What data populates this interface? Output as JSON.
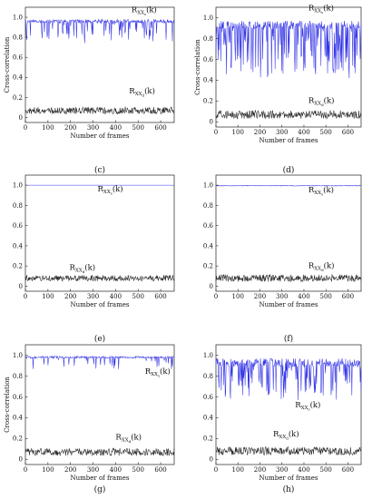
{
  "chart_data": [
    {
      "type": "line",
      "panel_label": "(c)",
      "xlabel": "Number of frames",
      "ylabel": "Cross-correlation",
      "xlim": [
        0,
        660
      ],
      "ylim": [
        -0.05,
        1.1
      ],
      "xticks": [
        0,
        100,
        200,
        300,
        400,
        500,
        600
      ],
      "yticks": [
        0,
        0.2,
        0.4,
        0.6,
        0.8,
        1.0
      ],
      "ytick_labels": [
        "0",
        "0.2",
        "0.4",
        "0.6",
        "0.8",
        "1.0"
      ],
      "series": [
        {
          "name": "R_XXs(k)",
          "color": "#3232e6",
          "base": 0.96,
          "noise": 0.02,
          "dip_prob": 0.22,
          "dip_max": 0.2,
          "seed": 11,
          "label": {
            "x": 470,
            "y": 1.05
          }
        },
        {
          "name": "R_XXd(k)",
          "color": "#222222",
          "base": 0.07,
          "noise": 0.035,
          "dip_prob": 0,
          "dip_max": 0,
          "seed": 12,
          "label": {
            "x": 460,
            "y": 0.24
          }
        }
      ]
    },
    {
      "type": "line",
      "panel_label": "(d)",
      "xlabel": "Number of frames",
      "ylabel": "Cross-correlation",
      "xlim": [
        0,
        660
      ],
      "ylim": [
        -0.05,
        1.1
      ],
      "xticks": [
        0,
        100,
        200,
        300,
        400,
        500,
        600
      ],
      "yticks": [
        0,
        0.2,
        0.4,
        0.6,
        0.8,
        1.0
      ],
      "ytick_labels": [
        "0",
        "0.2",
        "0.4",
        "0.6",
        "0.8",
        "1.0"
      ],
      "series": [
        {
          "name": "R_XXs(k)",
          "color": "#3232e6",
          "base": 0.93,
          "noise": 0.04,
          "dip_prob": 0.4,
          "dip_max": 0.5,
          "seed": 21,
          "label": {
            "x": 420,
            "y": 1.07
          }
        },
        {
          "name": "R_XXd(k)",
          "color": "#222222",
          "base": 0.07,
          "noise": 0.04,
          "dip_prob": 0,
          "dip_max": 0,
          "seed": 22,
          "label": {
            "x": 420,
            "y": 0.18
          }
        }
      ]
    },
    {
      "type": "line",
      "panel_label": "(e)",
      "xlabel": "Number of frames",
      "ylabel": "",
      "xlim": [
        0,
        660
      ],
      "ylim": [
        -0.05,
        1.1
      ],
      "xticks": [
        0,
        100,
        200,
        300,
        400,
        500,
        600
      ],
      "yticks": [
        0,
        0.2,
        0.4,
        0.6,
        0.8,
        1.0
      ],
      "ytick_labels": [
        "0",
        "0.2",
        "0.4",
        "0.6",
        "0.8",
        "1.0"
      ],
      "series": [
        {
          "name": "R_XXs(k)",
          "color": "#3232e6",
          "base": 1.0,
          "noise": 0.0,
          "dip_prob": 0,
          "dip_max": 0,
          "seed": 31,
          "label": {
            "x": 320,
            "y": 0.94
          }
        },
        {
          "name": "R_XXd(k)",
          "color": "#222222",
          "base": 0.08,
          "noise": 0.03,
          "dip_prob": 0,
          "dip_max": 0,
          "seed": 32,
          "label": {
            "x": 195,
            "y": 0.16
          }
        }
      ]
    },
    {
      "type": "line",
      "panel_label": "(f)",
      "xlabel": "Number of frames",
      "ylabel": "",
      "xlim": [
        0,
        660
      ],
      "ylim": [
        -0.05,
        1.1
      ],
      "xticks": [
        0,
        100,
        200,
        300,
        400,
        500,
        600
      ],
      "yticks": [
        0,
        0.2,
        0.4,
        0.6,
        0.8,
        1.0
      ],
      "ytick_labels": [
        "0",
        "0.2",
        "0.4",
        "0.6",
        "0.8",
        "1.0"
      ],
      "series": [
        {
          "name": "R_XXs(k)",
          "color": "#3232e6",
          "base": 0.995,
          "noise": 0.003,
          "dip_prob": 0,
          "dip_max": 0,
          "seed": 41,
          "label": {
            "x": 420,
            "y": 0.93
          }
        },
        {
          "name": "R_XXd(k)",
          "color": "#222222",
          "base": 0.08,
          "noise": 0.035,
          "dip_prob": 0,
          "dip_max": 0,
          "seed": 42,
          "label": {
            "x": 420,
            "y": 0.18
          }
        }
      ]
    },
    {
      "type": "line",
      "panel_label": "(g)",
      "xlabel": "Number of frames",
      "ylabel": "Cross-correlation",
      "xlim": [
        0,
        660
      ],
      "ylim": [
        -0.05,
        1.1
      ],
      "xticks": [
        0,
        100,
        200,
        300,
        400,
        500,
        600
      ],
      "yticks": [
        0,
        0.2,
        0.4,
        0.6,
        0.8,
        1.0
      ],
      "ytick_labels": [
        "0",
        "0.2",
        "0.4",
        "0.6",
        "0.8",
        "1.0"
      ],
      "series": [
        {
          "name": "R_XXs(k)",
          "color": "#3232e6",
          "base": 0.98,
          "noise": 0.01,
          "dip_prob": 0.08,
          "dip_max": 0.12,
          "seed": 51,
          "label": {
            "x": 530,
            "y": 0.82
          }
        },
        {
          "name": "R_XXd(k)",
          "color": "#222222",
          "base": 0.07,
          "noise": 0.035,
          "dip_prob": 0,
          "dip_max": 0,
          "seed": 52,
          "label": {
            "x": 400,
            "y": 0.19
          }
        }
      ]
    },
    {
      "type": "line",
      "panel_label": "(h)",
      "xlabel": "Number of frames",
      "ylabel": "",
      "xlim": [
        0,
        660
      ],
      "ylim": [
        -0.05,
        1.1
      ],
      "xticks": [
        0,
        100,
        200,
        300,
        400,
        500,
        600
      ],
      "yticks": [
        0,
        0.2,
        0.4,
        0.6,
        0.8,
        1.0
      ],
      "ytick_labels": [
        "0",
        "0.2",
        "0.4",
        "0.6",
        "0.8",
        "1.0"
      ],
      "series": [
        {
          "name": "R_XXs(k)",
          "color": "#3232e6",
          "base": 0.93,
          "noise": 0.04,
          "dip_prob": 0.3,
          "dip_max": 0.35,
          "seed": 61,
          "label": {
            "x": 360,
            "y": 0.5
          }
        },
        {
          "name": "R_XXd(k)",
          "color": "#222222",
          "base": 0.08,
          "noise": 0.04,
          "dip_prob": 0,
          "dip_max": 0,
          "seed": 62,
          "label": {
            "x": 260,
            "y": 0.22
          }
        }
      ]
    }
  ]
}
